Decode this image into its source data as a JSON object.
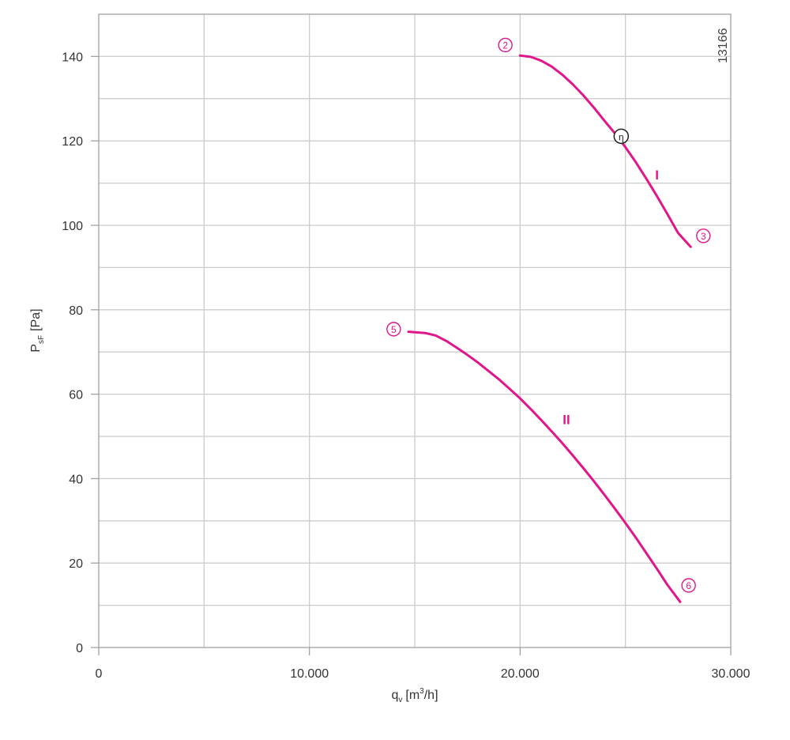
{
  "chart_data": {
    "type": "line",
    "figure_id": "13166",
    "xlabel": {
      "main": "q",
      "sub": "v",
      "unit_pre": "[m",
      "unit_sup": "3",
      "unit_post": "/h]"
    },
    "ylabel": {
      "main": "P",
      "sub": "sF",
      "unit": "[Pa]"
    },
    "xlim": [
      0,
      30000
    ],
    "ylim": [
      0,
      150
    ],
    "x_ticks": [
      {
        "value": 0,
        "label": "0"
      },
      {
        "value": 10000,
        "label": "10.000"
      },
      {
        "value": 20000,
        "label": "20.000"
      },
      {
        "value": 30000,
        "label": "30.000"
      }
    ],
    "y_ticks": [
      {
        "value": 0,
        "label": "0"
      },
      {
        "value": 20,
        "label": "20"
      },
      {
        "value": 40,
        "label": "40"
      },
      {
        "value": 60,
        "label": "60"
      },
      {
        "value": 80,
        "label": "80"
      },
      {
        "value": 100,
        "label": "100"
      },
      {
        "value": 120,
        "label": "120"
      },
      {
        "value": 140,
        "label": "140"
      }
    ],
    "grid": true,
    "x_grid_step": 5000,
    "y_grid_step": 10,
    "series": [
      {
        "label": "I",
        "label_pos": {
          "x": 26500,
          "y": 112
        },
        "start_marker": {
          "label": "2",
          "x": 19300,
          "y": 142.7
        },
        "end_marker": {
          "label": "3",
          "x": 28700,
          "y": 97.5
        },
        "points": [
          {
            "x": 20000,
            "y": 140.2
          },
          {
            "x": 20500,
            "y": 139.9
          },
          {
            "x": 21000,
            "y": 139.0
          },
          {
            "x": 21500,
            "y": 137.6
          },
          {
            "x": 22000,
            "y": 135.7
          },
          {
            "x": 22500,
            "y": 133.4
          },
          {
            "x": 23000,
            "y": 130.8
          },
          {
            "x": 23500,
            "y": 127.9
          },
          {
            "x": 24000,
            "y": 124.8
          },
          {
            "x": 24500,
            "y": 121.8
          },
          {
            "x": 25000,
            "y": 118.5
          },
          {
            "x": 25500,
            "y": 114.9
          },
          {
            "x": 26000,
            "y": 111.0
          },
          {
            "x": 26500,
            "y": 106.9
          },
          {
            "x": 27000,
            "y": 102.6
          },
          {
            "x": 27500,
            "y": 98.2
          },
          {
            "x": 28100,
            "y": 94.9
          }
        ]
      },
      {
        "label": "II",
        "label_pos": {
          "x": 22200,
          "y": 54
        },
        "start_marker": {
          "label": "5",
          "x": 14000,
          "y": 75.4
        },
        "end_marker": {
          "label": "6",
          "x": 28000,
          "y": 14.7
        },
        "points": [
          {
            "x": 14700,
            "y": 74.8
          },
          {
            "x": 15500,
            "y": 74.5
          },
          {
            "x": 16000,
            "y": 73.9
          },
          {
            "x": 16500,
            "y": 72.6
          },
          {
            "x": 17000,
            "y": 71.0
          },
          {
            "x": 17500,
            "y": 69.3
          },
          {
            "x": 18000,
            "y": 67.5
          },
          {
            "x": 18500,
            "y": 65.5
          },
          {
            "x": 19000,
            "y": 63.5
          },
          {
            "x": 19500,
            "y": 61.3
          },
          {
            "x": 20000,
            "y": 59.0
          },
          {
            "x": 20500,
            "y": 56.5
          },
          {
            "x": 21000,
            "y": 53.9
          },
          {
            "x": 21500,
            "y": 51.2
          },
          {
            "x": 22000,
            "y": 48.4
          },
          {
            "x": 22500,
            "y": 45.5
          },
          {
            "x": 23000,
            "y": 42.5
          },
          {
            "x": 23500,
            "y": 39.4
          },
          {
            "x": 24000,
            "y": 36.2
          },
          {
            "x": 24500,
            "y": 32.9
          },
          {
            "x": 25000,
            "y": 29.5
          },
          {
            "x": 25500,
            "y": 26.0
          },
          {
            "x": 26000,
            "y": 22.3
          },
          {
            "x": 26500,
            "y": 18.6
          },
          {
            "x": 27000,
            "y": 14.8
          },
          {
            "x": 27600,
            "y": 10.8
          }
        ]
      }
    ],
    "efficiency_marker": {
      "label": "η",
      "x": 24800,
      "y": 121.1
    },
    "colors": {
      "curve": "#e0168a",
      "grid": "#cccccc",
      "axis": "#a0a0a0",
      "text": "#333333",
      "efficiency_marker": "#222222"
    }
  }
}
